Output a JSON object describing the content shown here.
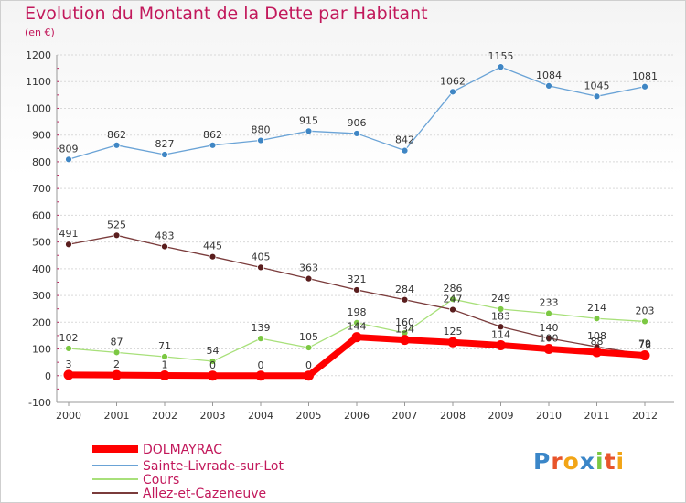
{
  "header": {
    "title": "Evolution du Montant de la Dette par Habitant",
    "unit": "(en €)"
  },
  "logo": {
    "text": "Proxiti"
  },
  "chart_data": {
    "type": "line",
    "x": [
      "2000",
      "2001",
      "2002",
      "2003",
      "2004",
      "2005",
      "2006",
      "2007",
      "2008",
      "2009",
      "2010",
      "2011",
      "2012"
    ],
    "ylim": [
      -100,
      1200
    ],
    "yticks": [
      -100,
      0,
      100,
      200,
      300,
      400,
      500,
      600,
      700,
      800,
      900,
      1000,
      1100,
      1200
    ],
    "grid": "horizontal",
    "legend": "bottom-left",
    "series": [
      {
        "name": "Sainte-Livrade-sur-Lot",
        "color": "#6aa3d6",
        "marker": "#3f86c4",
        "values": [
          809,
          862,
          827,
          862,
          880,
          915,
          906,
          842,
          1062,
          1155,
          1084,
          1045,
          1081
        ]
      },
      {
        "name": "Cours",
        "color": "#a8e07a",
        "marker": "#7cc843",
        "values": [
          102,
          87,
          71,
          54,
          139,
          105,
          198,
          160,
          286,
          249,
          233,
          214,
          203
        ]
      },
      {
        "name": "Allez-et-Cazeneuve",
        "color": "#7a3b3b",
        "marker": "#5a1e1e",
        "values": [
          491,
          525,
          483,
          445,
          405,
          363,
          321,
          284,
          247,
          183,
          140,
          108,
          79
        ]
      },
      {
        "name": "DOLMAYRAC",
        "color": "#ff0000",
        "marker": "#ff0000",
        "values": [
          3,
          2,
          1,
          0,
          0,
          0,
          144,
          134,
          125,
          114,
          100,
          88,
          76
        ]
      }
    ]
  }
}
